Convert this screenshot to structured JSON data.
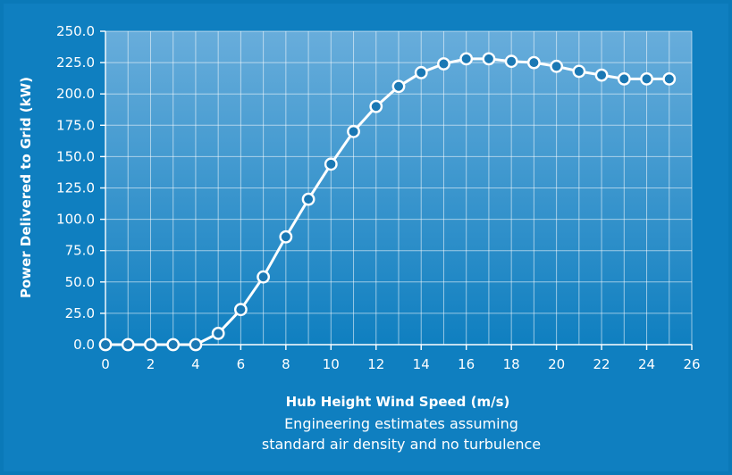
{
  "colors": {
    "background": "#0f7fc0",
    "plot_top": "#68addb",
    "plot_bottom": "#0f7fc0",
    "line": "#ffffff",
    "marker_fill": "#1a78b4"
  },
  "chart_data": {
    "type": "line",
    "title": "",
    "xlabel": "Hub Height Wind Speed (m/s)",
    "ylabel": "Power Delivered to Grid (kW)",
    "notes": [
      "Engineering estimates assuming",
      "standard air density and no turbulence"
    ],
    "xlim": [
      0,
      26
    ],
    "ylim": [
      0,
      250
    ],
    "grid": true,
    "x_ticks": [
      "0",
      "2",
      "4",
      "6",
      "8",
      "10",
      "12",
      "14",
      "16",
      "18",
      "20",
      "22",
      "24",
      "26"
    ],
    "y_ticks": [
      "0.0",
      "25.0",
      "50.0",
      "75.0",
      "100.0",
      "125.0",
      "150.0",
      "175.0",
      "200.0",
      "225.0",
      "250.0"
    ],
    "series": [
      {
        "x": [
          0,
          1,
          2,
          3,
          4,
          5,
          6,
          7,
          8,
          9,
          10,
          11,
          12,
          13,
          14,
          15,
          16,
          17,
          18,
          19,
          20,
          21,
          22,
          23,
          24,
          25
        ],
        "y": [
          0,
          0,
          0,
          0,
          0,
          9,
          28,
          54,
          86,
          116,
          144,
          170,
          190,
          206,
          217,
          224,
          228,
          228,
          226,
          225,
          222,
          218,
          215,
          212,
          212,
          212
        ]
      }
    ]
  }
}
